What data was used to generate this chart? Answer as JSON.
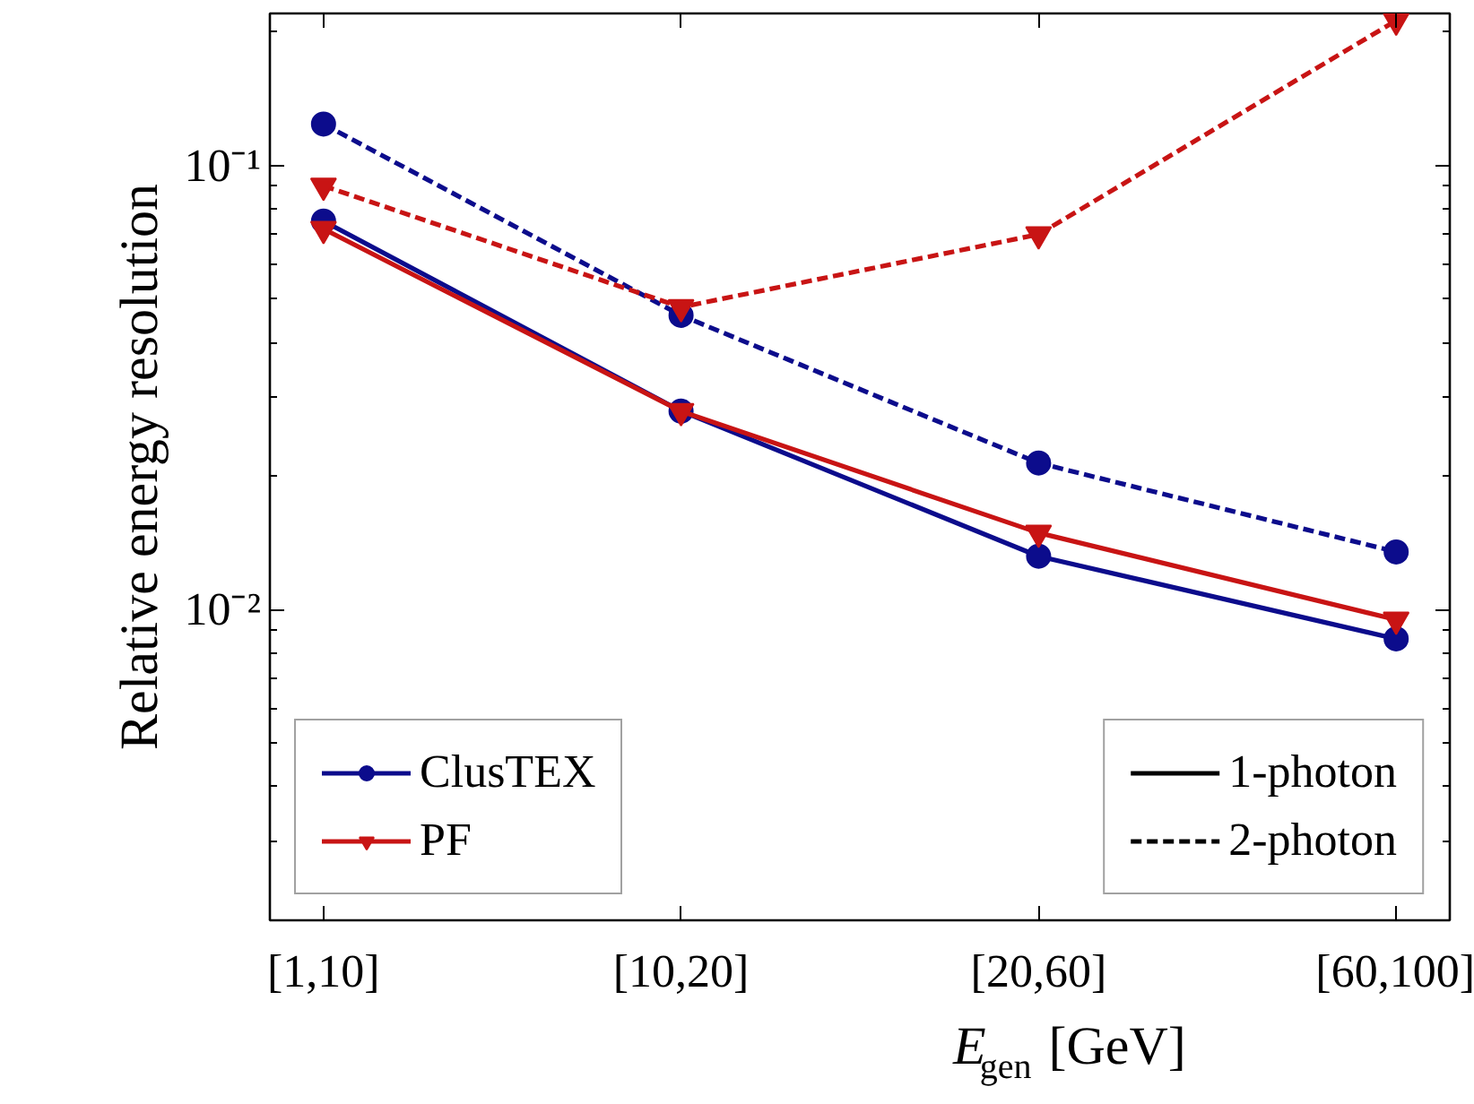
{
  "chart_data": {
    "type": "line",
    "xlabel": "E$_{gen}$ [GeV]",
    "ylabel": "Relative energy resolution",
    "categories": [
      "[1,10]",
      "[10,20]",
      "[20,60]",
      "[60,100]"
    ],
    "series": [
      {
        "name": "ClusTEX",
        "color": "#0c0c8c",
        "marker": "circle",
        "line_style": "solid",
        "values": [
          0.075,
          0.028,
          0.0132,
          0.0086
        ]
      },
      {
        "name": "PF",
        "color": "#c81414",
        "marker": "triangle",
        "line_style": "solid",
        "values": [
          0.072,
          0.028,
          0.0149,
          0.0095
        ]
      },
      {
        "color": "#0c0c8c",
        "marker": "circle",
        "line_style": "dashed",
        "values": [
          0.124,
          0.046,
          0.0214,
          0.0135
        ]
      },
      {
        "color": "#c81414",
        "marker": "triangle",
        "line_style": "dashed",
        "values": [
          0.09,
          0.048,
          0.07,
          0.212
        ]
      }
    ],
    "annotations": [
      "1-photon",
      "2-photon"
    ],
    "log": "y",
    "ylim": [
      0.002,
      0.22
    ],
    "yticks": [
      {
        "value": 0.01,
        "label": "10⁻²"
      },
      {
        "value": 0.1,
        "label": "10⁻¹"
      }
    ],
    "grid": false,
    "legend": "bottom"
  }
}
